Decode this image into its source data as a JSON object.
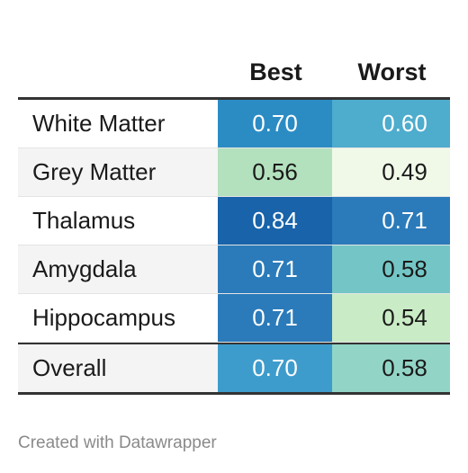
{
  "chart_data": {
    "type": "table",
    "columns": [
      "",
      "Best",
      "Worst"
    ],
    "rows": [
      {
        "label": "White Matter",
        "best": "0.70",
        "worst": "0.60",
        "best_color": "#2b8cc4",
        "worst_color": "#4eaccd",
        "best_text": "#ffffff",
        "worst_text": "#ffffff"
      },
      {
        "label": "Grey Matter",
        "best": "0.56",
        "worst": "0.49",
        "best_color": "#b3e1be",
        "worst_color": "#f0f9e8",
        "best_text": "#1a1a1a",
        "worst_text": "#1a1a1a"
      },
      {
        "label": "Thalamus",
        "best": "0.84",
        "worst": "0.71",
        "best_color": "#1863aa",
        "worst_color": "#2b7bba",
        "best_text": "#ffffff",
        "worst_text": "#ffffff"
      },
      {
        "label": "Amygdala",
        "best": "0.71",
        "worst": "0.58",
        "best_color": "#2b7bba",
        "worst_color": "#74c6c6",
        "best_text": "#ffffff",
        "worst_text": "#1a1a1a"
      },
      {
        "label": "Hippocampus",
        "best": "0.71",
        "worst": "0.54",
        "best_color": "#2b7bba",
        "worst_color": "#c9ebc5",
        "best_text": "#ffffff",
        "worst_text": "#1a1a1a"
      }
    ],
    "total": {
      "label": "Overall",
      "best": "0.70",
      "worst": "0.58",
      "best_color": "#3e9ccc",
      "worst_color": "#92d5c6",
      "best_text": "#ffffff",
      "worst_text": "#1a1a1a"
    }
  },
  "footer": {
    "credit": "Created with Datawrapper"
  }
}
